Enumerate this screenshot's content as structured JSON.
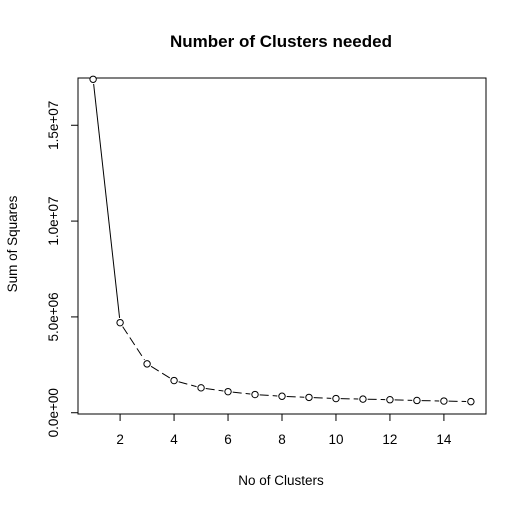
{
  "chart_data": {
    "type": "line",
    "title": "Number of Clusters needed",
    "xlabel": "No of Clusters",
    "ylabel": "Sum of Squares",
    "x": [
      1,
      2,
      3,
      4,
      5,
      6,
      7,
      8,
      9,
      10,
      11,
      12,
      13,
      14,
      15
    ],
    "series": [
      {
        "values": [
          17400000,
          4700000,
          2550000,
          1680000,
          1300000,
          1100000,
          950000,
          860000,
          800000,
          740000,
          710000,
          680000,
          640000,
          610000,
          580000
        ]
      }
    ],
    "xlim": [
      0.44,
      15.56
    ],
    "ylim": [
      -66000,
      17466000
    ],
    "xticks": [
      {
        "value": 2,
        "label": "2"
      },
      {
        "value": 4,
        "label": "4"
      },
      {
        "value": 6,
        "label": "6"
      },
      {
        "value": 8,
        "label": "8"
      },
      {
        "value": 10,
        "label": "10"
      },
      {
        "value": 12,
        "label": "12"
      },
      {
        "value": 14,
        "label": "14"
      }
    ],
    "yticks": [
      {
        "value": 0,
        "label": "0.0e+00"
      },
      {
        "value": 5000000,
        "label": "5.0e+06"
      },
      {
        "value": 10000000,
        "label": "1.0e+07"
      },
      {
        "value": 15000000,
        "label": "1.5e+07"
      }
    ],
    "line_style": "dashed",
    "marker": "open-circle",
    "grid": false,
    "colors": {
      "line": "#000000",
      "marker_fill": "#ffffff",
      "frame": "#000000"
    }
  }
}
